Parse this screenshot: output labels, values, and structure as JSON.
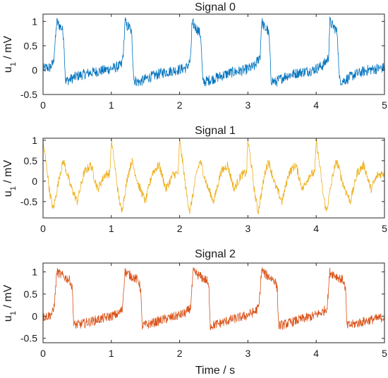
{
  "chart_data": [
    {
      "type": "line",
      "title": "Signal 0",
      "ylabel": "u_1 / mV",
      "xlabel": "",
      "xlim": [
        0,
        5
      ],
      "ylim": [
        -0.5,
        1.15
      ],
      "xticks": [
        "0",
        "1",
        "2",
        "3",
        "4",
        "5"
      ],
      "yticks": [
        "-0.5",
        "0",
        "0.5",
        "1"
      ],
      "color": "#0072BD",
      "grid": false,
      "series": [
        {
          "x": [
            0,
            0.05,
            0.1,
            0.15,
            0.18,
            0.2,
            0.22,
            0.25,
            0.28,
            0.3,
            0.33,
            0.38,
            0.5,
            0.7,
            0.9,
            1.05,
            1.15,
            1.18,
            1.2,
            1.22,
            1.25,
            1.28,
            1.3,
            1.33,
            1.4,
            1.55,
            1.75,
            1.95,
            2.1,
            2.16,
            2.18,
            2.2,
            2.22,
            2.25,
            2.28,
            2.31,
            2.34,
            2.4,
            2.55,
            2.75,
            2.95,
            3.1,
            3.18,
            3.2,
            3.22,
            3.25,
            3.28,
            3.31,
            3.34,
            3.4,
            3.55,
            3.75,
            3.95,
            4.1,
            4.18,
            4.2,
            4.22,
            4.25,
            4.28,
            4.31,
            4.34,
            4.4,
            4.55,
            4.75,
            5.0
          ],
          "y": [
            0.02,
            0.05,
            0.05,
            0.15,
            0.6,
            1.0,
            0.95,
            0.9,
            0.85,
            0.7,
            -0.22,
            -0.2,
            -0.12,
            -0.05,
            0.0,
            0.05,
            0.1,
            0.4,
            1.05,
            0.9,
            0.9,
            0.85,
            0.7,
            -0.2,
            -0.25,
            -0.15,
            -0.05,
            0.0,
            0.05,
            0.2,
            0.9,
            0.95,
            0.9,
            0.85,
            0.8,
            0.7,
            -0.25,
            -0.22,
            -0.15,
            -0.05,
            0.0,
            0.08,
            0.3,
            1.0,
            0.95,
            0.85,
            0.85,
            0.7,
            -0.2,
            -0.25,
            -0.12,
            -0.05,
            0.0,
            0.1,
            0.25,
            1.0,
            0.95,
            0.9,
            0.85,
            0.75,
            -0.2,
            -0.22,
            -0.1,
            0.0,
            0.05
          ]
        }
      ]
    },
    {
      "type": "line",
      "title": "Signal 1",
      "ylabel": "u_1 / mV",
      "xlabel": "",
      "xlim": [
        0,
        5
      ],
      "ylim": [
        -0.9,
        1.05
      ],
      "xticks": [
        "0",
        "1",
        "2",
        "3",
        "4",
        "5"
      ],
      "yticks": [
        "-0.5",
        "0",
        "0.5",
        "1"
      ],
      "color": "#EDB120",
      "grid": false,
      "series": [
        {
          "x": [
            0.0,
            0.05,
            0.1,
            0.15,
            0.25,
            0.3,
            0.4,
            0.5,
            0.6,
            0.7,
            0.8,
            0.9,
            0.98,
            1.0,
            1.05,
            1.1,
            1.15,
            1.25,
            1.3,
            1.4,
            1.5,
            1.6,
            1.7,
            1.8,
            1.9,
            1.98,
            2.0,
            2.05,
            2.1,
            2.15,
            2.25,
            2.3,
            2.4,
            2.5,
            2.6,
            2.7,
            2.8,
            2.9,
            2.98,
            3.0,
            3.05,
            3.1,
            3.15,
            3.25,
            3.3,
            3.4,
            3.5,
            3.6,
            3.7,
            3.8,
            3.9,
            3.98,
            4.0,
            4.05,
            4.1,
            4.15,
            4.25,
            4.3,
            4.4,
            4.5,
            4.6,
            4.7,
            4.8,
            4.9,
            5.0
          ],
          "y": [
            0.95,
            0.4,
            -0.3,
            -0.7,
            0.2,
            0.5,
            -0.1,
            -0.5,
            0.2,
            0.4,
            -0.2,
            0.15,
            0.2,
            1.0,
            0.4,
            -0.3,
            -0.75,
            0.2,
            0.5,
            -0.1,
            -0.5,
            0.2,
            0.4,
            -0.2,
            0.15,
            0.2,
            1.0,
            0.4,
            -0.3,
            -0.75,
            0.2,
            0.5,
            -0.1,
            -0.5,
            0.2,
            0.4,
            -0.2,
            0.15,
            0.2,
            1.0,
            0.4,
            -0.3,
            -0.75,
            0.2,
            0.5,
            -0.1,
            -0.5,
            0.2,
            0.4,
            -0.2,
            0.15,
            0.2,
            1.0,
            0.4,
            -0.3,
            -0.75,
            0.2,
            0.5,
            -0.1,
            -0.5,
            0.2,
            0.4,
            -0.2,
            0.15,
            0.2
          ]
        }
      ]
    },
    {
      "type": "line",
      "title": "Signal 2",
      "ylabel": "u_1 / mV",
      "xlabel": "Time / s",
      "xlim": [
        0,
        5
      ],
      "ylim": [
        -0.6,
        1.2
      ],
      "xticks": [
        "0",
        "1",
        "2",
        "3",
        "4",
        "5"
      ],
      "yticks": [
        "-0.5",
        "0",
        "0.5",
        "1"
      ],
      "color": "#D95319",
      "grid": false,
      "series": [
        {
          "x": [
            0.0,
            0.1,
            0.15,
            0.18,
            0.2,
            0.25,
            0.3,
            0.35,
            0.4,
            0.43,
            0.45,
            0.55,
            0.75,
            0.95,
            1.1,
            1.16,
            1.18,
            1.2,
            1.25,
            1.3,
            1.35,
            1.4,
            1.43,
            1.45,
            1.55,
            1.75,
            1.95,
            2.1,
            2.16,
            2.18,
            2.2,
            2.25,
            2.3,
            2.35,
            2.4,
            2.43,
            2.45,
            2.55,
            2.75,
            2.95,
            3.1,
            3.16,
            3.18,
            3.2,
            3.25,
            3.3,
            3.35,
            3.4,
            3.43,
            3.45,
            3.55,
            3.75,
            3.95,
            4.1,
            4.16,
            4.18,
            4.2,
            4.25,
            4.3,
            4.35,
            4.4,
            4.43,
            4.45,
            4.55,
            4.75,
            5.0
          ],
          "y": [
            -0.02,
            0.02,
            0.1,
            0.5,
            1.0,
            0.95,
            0.9,
            0.85,
            0.8,
            0.6,
            -0.2,
            -0.18,
            -0.1,
            -0.02,
            0.05,
            0.15,
            0.6,
            1.0,
            0.95,
            0.9,
            0.85,
            0.8,
            0.6,
            -0.22,
            -0.18,
            -0.08,
            0.0,
            0.08,
            0.2,
            0.6,
            1.0,
            0.95,
            0.9,
            0.85,
            0.8,
            0.6,
            -0.22,
            -0.18,
            -0.08,
            0.0,
            0.1,
            0.2,
            0.6,
            1.05,
            0.95,
            0.9,
            0.85,
            0.8,
            0.6,
            -0.22,
            -0.18,
            -0.08,
            0.0,
            0.1,
            0.2,
            0.6,
            1.0,
            0.95,
            0.9,
            0.85,
            0.8,
            0.6,
            -0.22,
            -0.18,
            -0.1,
            -0.02
          ]
        }
      ]
    }
  ]
}
